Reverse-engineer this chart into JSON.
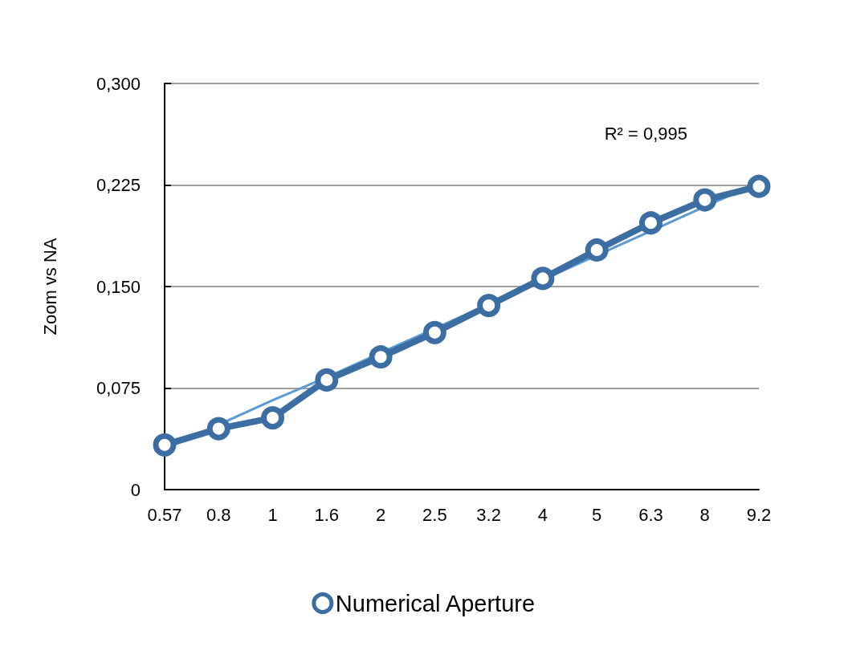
{
  "chart_data": {
    "type": "line",
    "ylabel": "Zoom vs NA",
    "categories": [
      "0.57",
      "0.8",
      "1",
      "1.6",
      "2",
      "2.5",
      "3.2",
      "4",
      "5",
      "6.3",
      "8",
      "9.2"
    ],
    "series": [
      {
        "name": "Numerical Aperture",
        "color": "#3d6ea3",
        "values": [
          0.033,
          0.045,
          0.053,
          0.081,
          0.098,
          0.116,
          0.136,
          0.156,
          0.177,
          0.197,
          0.214,
          0.224
        ]
      },
      {
        "type": "line",
        "color": "#5b9bd5",
        "marker": "none",
        "values": [
          0.03,
          0.048,
          0.066,
          0.083,
          0.101,
          0.119,
          0.137,
          0.155,
          0.173,
          0.191,
          0.209,
          0.227
        ]
      }
    ],
    "ylim": [
      0,
      0.3
    ],
    "yticks": [
      0,
      {
        "value": 0.075,
        "label": "0,075"
      },
      {
        "value": 0.15,
        "label": "0,150"
      },
      {
        "value": 0.225,
        "label": "0,225"
      },
      {
        "value": 0.3,
        "label": "0,300"
      }
    ],
    "grid": "y",
    "legend": "bottom",
    "marker": "circle",
    "line_style": "solid",
    "annotations": [
      "R² = 0,995"
    ]
  }
}
